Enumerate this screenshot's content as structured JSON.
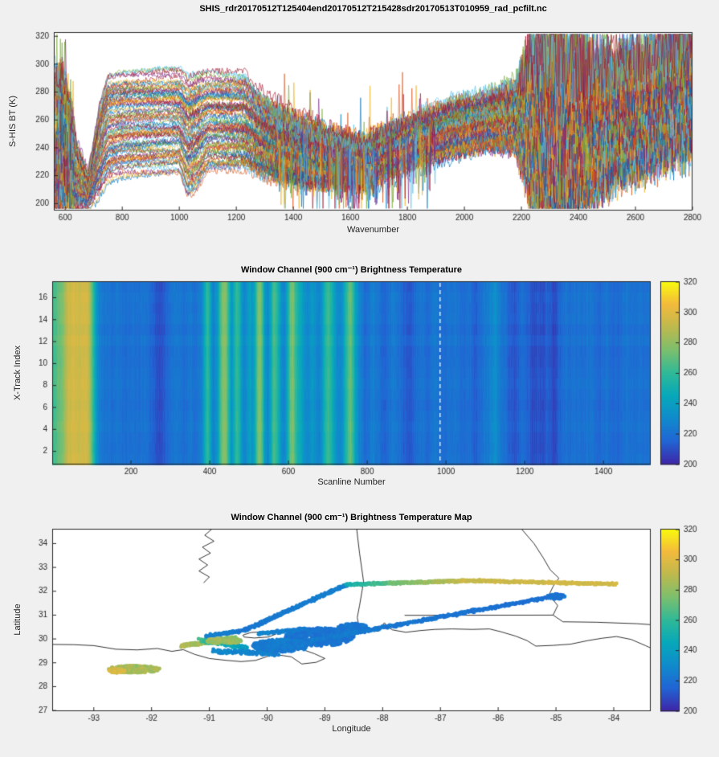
{
  "figure": {
    "background": "#f0f0f0",
    "axes_background": "#ffffff",
    "axes_color": "#262626"
  },
  "colormap": {
    "name": "parula",
    "range": [
      200,
      320
    ]
  },
  "line_color_order": [
    "#0072BD",
    "#D95319",
    "#EDB120",
    "#7E2F8E",
    "#77AC30",
    "#4DBEEE",
    "#A2142F"
  ],
  "chart_data": [
    {
      "type": "line",
      "title": "SHIS_rdr20170512T125404end20170512T215428sdr20170513T010959_rad_pcfilt.nc",
      "xlabel": "Wavenumber",
      "ylabel": "S-HIS BT (K)",
      "xlim": [
        560,
        2800
      ],
      "ylim": [
        195,
        323
      ],
      "xticks": [
        600,
        800,
        1000,
        1200,
        1400,
        1600,
        1800,
        2000,
        2200,
        2400,
        2600,
        2800
      ],
      "yticks": [
        200,
        220,
        240,
        260,
        280,
        300,
        320
      ],
      "n_spectra": 84,
      "envelope": {
        "w": [
          560,
          600,
          640,
          680,
          720,
          750,
          800,
          1000,
          1030,
          1060,
          1100,
          1230,
          1280,
          1350,
          1450,
          1550,
          1650,
          1750,
          1850,
          1950,
          2080,
          2180,
          2230,
          2330,
          2430,
          2530,
          2630,
          2800
        ],
        "lower": [
          200,
          200,
          197,
          198,
          208,
          218,
          222,
          224,
          207,
          212,
          226,
          226,
          222,
          218,
          214,
          214,
          212,
          220,
          228,
          234,
          240,
          240,
          210,
          200,
          212,
          222,
          232,
          248
        ],
        "upper": [
          295,
          293,
          245,
          222,
          270,
          292,
          293,
          294,
          288,
          290,
          292,
          291,
          278,
          268,
          258,
          250,
          246,
          256,
          264,
          272,
          278,
          285,
          310,
          318,
          305,
          302,
          308,
          322
        ],
        "noise": [
          18,
          12,
          5,
          3,
          3,
          2,
          2,
          2,
          3,
          3,
          2,
          3,
          5,
          7,
          8,
          7,
          7,
          6,
          5,
          5,
          5,
          8,
          28,
          45,
          30,
          22,
          24,
          28
        ]
      }
    },
    {
      "type": "heatmap",
      "title": "Window Channel (900 cm⁻¹) Brightness Temperature",
      "xlabel": "Scanline Number",
      "ylabel": "X-Track Index",
      "xlim": [
        0,
        1520
      ],
      "ylim": [
        0.8,
        17.5
      ],
      "xticks": [
        200,
        400,
        600,
        800,
        1000,
        1200,
        1400
      ],
      "yticks": [
        2,
        4,
        6,
        8,
        10,
        12,
        14,
        16
      ],
      "colorbar": {
        "range": [
          200,
          320
        ],
        "ticks": [
          200,
          220,
          240,
          260,
          280,
          300,
          320
        ]
      },
      "cursor_line": {
        "scanline": 985,
        "style": "dashed",
        "color": "#ffffff"
      },
      "profile": {
        "scanline": [
          1,
          10,
          20,
          30,
          40,
          55,
          70,
          85,
          95,
          100,
          105,
          110,
          115,
          120,
          130,
          150,
          170,
          185,
          200,
          215,
          230,
          245,
          255,
          265,
          275,
          285,
          300,
          320,
          335,
          350,
          365,
          380,
          390,
          395,
          400,
          405,
          410,
          420,
          428,
          435,
          442,
          448,
          455,
          462,
          468,
          474,
          480,
          488,
          495,
          502,
          508,
          515,
          522,
          528,
          534,
          540,
          548,
          555,
          562,
          568,
          575,
          582,
          590,
          598,
          605,
          612,
          618,
          625,
          632,
          640,
          648,
          655,
          662,
          670,
          678,
          685,
          692,
          700,
          708,
          715,
          722,
          730,
          738,
          745,
          752,
          758,
          765,
          772,
          780,
          788,
          795,
          805,
          815,
          825,
          835,
          845,
          855,
          865,
          875,
          885,
          895,
          905,
          915,
          925,
          935,
          945,
          955,
          965,
          975,
          985,
          995,
          1005,
          1015,
          1025,
          1035,
          1045,
          1055,
          1065,
          1075,
          1085,
          1095,
          1105,
          1115,
          1125,
          1135,
          1145,
          1155,
          1165,
          1175,
          1185,
          1195,
          1205,
          1215,
          1225,
          1235,
          1245,
          1255,
          1265,
          1275,
          1285,
          1295,
          1305,
          1315,
          1330,
          1345,
          1360,
          1375,
          1390,
          1405,
          1420,
          1435,
          1450,
          1465,
          1480,
          1495,
          1510,
          1520
        ],
        "bt": [
          262,
          268,
          272,
          280,
          293,
          297,
          294,
          297,
          288,
          272,
          258,
          243,
          232,
          226,
          222,
          220,
          222,
          218,
          221,
          219,
          222,
          218,
          215,
          211,
          209,
          214,
          220,
          222,
          218,
          223,
          220,
          226,
          252,
          262,
          248,
          232,
          225,
          238,
          266,
          278,
          276,
          258,
          234,
          248,
          262,
          256,
          238,
          228,
          235,
          244,
          236,
          248,
          272,
          280,
          262,
          236,
          228,
          242,
          264,
          262,
          248,
          232,
          226,
          248,
          272,
          276,
          262,
          250,
          244,
          234,
          228,
          232,
          238,
          230,
          226,
          234,
          252,
          262,
          256,
          244,
          232,
          228,
          234,
          252,
          266,
          272,
          258,
          238,
          228,
          222,
          216,
          222,
          226,
          222,
          218,
          214,
          220,
          224,
          222,
          218,
          214,
          212,
          215,
          219,
          222,
          220,
          218,
          221,
          223,
          220,
          218,
          221,
          219,
          222,
          220,
          217,
          221,
          219,
          213,
          218,
          221,
          224,
          228,
          232,
          226,
          221,
          218,
          214,
          211,
          215,
          219,
          216,
          212,
          209,
          212,
          210,
          214,
          211,
          208,
          213,
          217,
          220,
          218,
          221,
          219,
          222,
          220,
          217,
          221,
          219,
          217,
          220,
          222,
          219,
          221,
          220,
          221
        ]
      }
    },
    {
      "type": "scatter-map",
      "title": "Window Channel (900 cm⁻¹) Brightness Temperature Map",
      "xlabel": "Longitude",
      "ylabel": "Latitude",
      "xlim": [
        -93.72,
        -83.36
      ],
      "ylim": [
        26.97,
        34.62
      ],
      "xticks": [
        -93,
        -92,
        -91,
        -90,
        -89,
        -88,
        -87,
        -86,
        -85,
        -84
      ],
      "yticks": [
        27,
        28,
        29,
        30,
        31,
        32,
        33,
        34
      ],
      "colorbar": {
        "range": [
          200,
          320
        ],
        "ticks": [
          200,
          220,
          240,
          260,
          280,
          300,
          320
        ]
      },
      "coastlines": [
        [
          [
            -93.72,
            29.77
          ],
          [
            -93.35,
            29.76
          ],
          [
            -93.0,
            29.72
          ],
          [
            -92.62,
            29.57
          ],
          [
            -92.25,
            29.54
          ],
          [
            -91.9,
            29.6
          ],
          [
            -91.65,
            29.48
          ],
          [
            -91.45,
            29.55
          ],
          [
            -91.25,
            29.35
          ],
          [
            -91.0,
            29.18
          ],
          [
            -90.7,
            29.1
          ],
          [
            -90.45,
            29.05
          ],
          [
            -90.2,
            29.1
          ],
          [
            -90.05,
            29.22
          ],
          [
            -89.9,
            29.35
          ],
          [
            -89.72,
            29.3
          ],
          [
            -89.58,
            29.25
          ],
          [
            -89.4,
            28.95
          ],
          [
            -89.15,
            29.02
          ],
          [
            -89.0,
            29.18
          ],
          [
            -89.18,
            29.38
          ],
          [
            -89.38,
            29.55
          ],
          [
            -89.52,
            29.78
          ],
          [
            -89.62,
            29.95
          ],
          [
            -89.45,
            30.06
          ],
          [
            -89.3,
            30.18
          ],
          [
            -89.25,
            30.3
          ],
          [
            -88.9,
            30.4
          ],
          [
            -88.55,
            30.35
          ],
          [
            -88.2,
            30.35
          ],
          [
            -88.08,
            30.32
          ],
          [
            -88.03,
            30.5
          ],
          [
            -87.97,
            30.68
          ],
          [
            -87.91,
            30.5
          ],
          [
            -87.83,
            30.38
          ],
          [
            -87.6,
            30.28
          ],
          [
            -87.35,
            30.35
          ],
          [
            -87.1,
            30.4
          ],
          [
            -86.8,
            30.42
          ],
          [
            -86.45,
            30.4
          ],
          [
            -86.15,
            30.42
          ],
          [
            -85.95,
            30.3
          ],
          [
            -85.7,
            30.12
          ],
          [
            -85.5,
            29.93
          ],
          [
            -85.35,
            29.7
          ],
          [
            -85.05,
            29.73
          ],
          [
            -84.75,
            29.78
          ],
          [
            -84.45,
            29.93
          ],
          [
            -84.2,
            30.03
          ],
          [
            -83.95,
            30.1
          ],
          [
            -83.7,
            29.98
          ],
          [
            -83.45,
            29.72
          ],
          [
            -83.36,
            29.62
          ]
        ],
        [
          [
            -90.42,
            30.16
          ],
          [
            -90.28,
            30.27
          ],
          [
            -90.05,
            30.3
          ],
          [
            -89.85,
            30.2
          ],
          [
            -89.98,
            30.08
          ],
          [
            -90.22,
            30.04
          ],
          [
            -90.4,
            30.08
          ],
          [
            -90.42,
            30.16
          ]
        ],
        [
          [
            -90.95,
            34.62
          ],
          [
            -91.08,
            34.35
          ],
          [
            -90.92,
            34.1
          ],
          [
            -91.12,
            33.85
          ],
          [
            -90.98,
            33.6
          ],
          [
            -91.18,
            33.35
          ],
          [
            -91.03,
            33.1
          ],
          [
            -91.18,
            32.85
          ],
          [
            -91.0,
            32.6
          ],
          [
            -91.1,
            32.35
          ]
        ],
        [
          [
            -88.45,
            34.62
          ],
          [
            -88.4,
            33.6
          ],
          [
            -88.33,
            32.4
          ],
          [
            -88.4,
            31.4
          ],
          [
            -88.44,
            30.9
          ],
          [
            -88.4,
            30.42
          ]
        ],
        [
          [
            -85.6,
            34.62
          ],
          [
            -85.38,
            34.0
          ],
          [
            -85.22,
            33.4
          ],
          [
            -85.1,
            32.9
          ],
          [
            -84.95,
            32.55
          ],
          [
            -85.05,
            32.2
          ],
          [
            -85.12,
            31.85
          ],
          [
            -84.97,
            31.4
          ],
          [
            -85.05,
            31.0
          ]
        ],
        [
          [
            -87.62,
            30.99
          ],
          [
            -85.05,
            31.0
          ]
        ],
        [
          [
            -85.05,
            31.0
          ],
          [
            -84.88,
            30.72
          ],
          [
            -84.3,
            30.7
          ],
          [
            -83.6,
            30.64
          ],
          [
            -83.36,
            30.6
          ]
        ]
      ],
      "tracks": [
        {
          "kind": "blob",
          "cx": -92.3,
          "cy": 28.73,
          "rx": 0.45,
          "ry": 0.15,
          "n": 300,
          "bt": 284,
          "spread": 16
        },
        {
          "kind": "blob",
          "cx": -92.6,
          "cy": 28.66,
          "rx": 0.14,
          "ry": 0.09,
          "n": 70,
          "bt": 296,
          "spread": 8
        },
        {
          "kind": "seg",
          "x1": -91.45,
          "y1": 29.72,
          "x2": -90.55,
          "y2": 30.05,
          "n": 170,
          "bt1": 288,
          "bt2": 276,
          "jitter": 0.07,
          "spread": 10
        },
        {
          "kind": "seg",
          "x1": -91.15,
          "y1": 29.95,
          "x2": -90.35,
          "y2": 29.62,
          "n": 110,
          "bt1": 262,
          "bt2": 238,
          "jitter": 0.08,
          "spread": 10
        },
        {
          "kind": "seg",
          "x1": -90.9,
          "y1": 29.5,
          "x2": -89.85,
          "y2": 29.38,
          "n": 130,
          "bt1": 230,
          "bt2": 225,
          "jitter": 0.09,
          "spread": 6
        },
        {
          "kind": "blob",
          "cx": -89.1,
          "cy": 30.08,
          "rx": 0.6,
          "ry": 0.38,
          "n": 520,
          "bt": 221,
          "spread": 6
        },
        {
          "kind": "blob",
          "cx": -89.75,
          "cy": 29.72,
          "rx": 0.5,
          "ry": 0.26,
          "n": 280,
          "bt": 224,
          "spread": 6
        },
        {
          "kind": "blob",
          "cx": -88.5,
          "cy": 30.45,
          "rx": 0.28,
          "ry": 0.2,
          "n": 140,
          "bt": 222,
          "spread": 5
        },
        {
          "kind": "seg",
          "x1": -91.05,
          "y1": 30.12,
          "x2": -90.4,
          "y2": 30.36,
          "n": 90,
          "bt1": 226,
          "bt2": 222,
          "jitter": 0.05,
          "spread": 5
        },
        {
          "kind": "seg",
          "x1": -90.4,
          "y1": 30.36,
          "x2": -88.62,
          "y2": 32.28,
          "n": 260,
          "bt1": 222,
          "bt2": 226,
          "jitter": 0.05,
          "spread": 5
        },
        {
          "kind": "seg",
          "x1": -89.25,
          "y1": 29.92,
          "x2": -85.05,
          "y2": 31.78,
          "n": 460,
          "bt1": 224,
          "bt2": 219,
          "jitter": 0.06,
          "spread": 5
        },
        {
          "kind": "blob",
          "cx": -85.0,
          "cy": 31.78,
          "rx": 0.15,
          "ry": 0.11,
          "n": 80,
          "bt": 221,
          "spread": 5
        },
        {
          "kind": "seg",
          "x1": -88.62,
          "y1": 32.28,
          "x2": -87.85,
          "y2": 32.34,
          "n": 120,
          "bt1": 250,
          "bt2": 268,
          "jitter": 0.05,
          "spread": 8
        },
        {
          "kind": "seg",
          "x1": -87.85,
          "y1": 32.34,
          "x2": -86.55,
          "y2": 32.44,
          "n": 180,
          "bt1": 272,
          "bt2": 292,
          "jitter": 0.05,
          "spread": 8
        },
        {
          "kind": "seg",
          "x1": -86.55,
          "y1": 32.44,
          "x2": -83.95,
          "y2": 32.3,
          "n": 300,
          "bt1": 293,
          "bt2": 296,
          "jitter": 0.05,
          "spread": 7
        },
        {
          "kind": "seg",
          "x1": -90.15,
          "y1": 30.22,
          "x2": -89.35,
          "y2": 30.42,
          "n": 90,
          "bt1": 228,
          "bt2": 224,
          "jitter": 0.06,
          "spread": 5
        },
        {
          "kind": "blob",
          "cx": -90.75,
          "cy": 29.92,
          "rx": 0.3,
          "ry": 0.12,
          "n": 100,
          "bt": 283,
          "spread": 10
        }
      ]
    }
  ],
  "plots": [
    {
      "title": "SHIS_rdr20170512T125404end20170512T215428sdr20170513T010959_rad_pcfilt.nc",
      "xlabel": "Wavenumber",
      "ylabel": "S-HIS BT (K)"
    },
    {
      "title": "Window Channel (900 cm⁻¹) Brightness Temperature",
      "xlabel": "Scanline Number",
      "ylabel": "X-Track Index"
    },
    {
      "title": "Window Channel (900 cm⁻¹) Brightness Temperature Map",
      "xlabel": "Longitude",
      "ylabel": "Latitude"
    }
  ]
}
